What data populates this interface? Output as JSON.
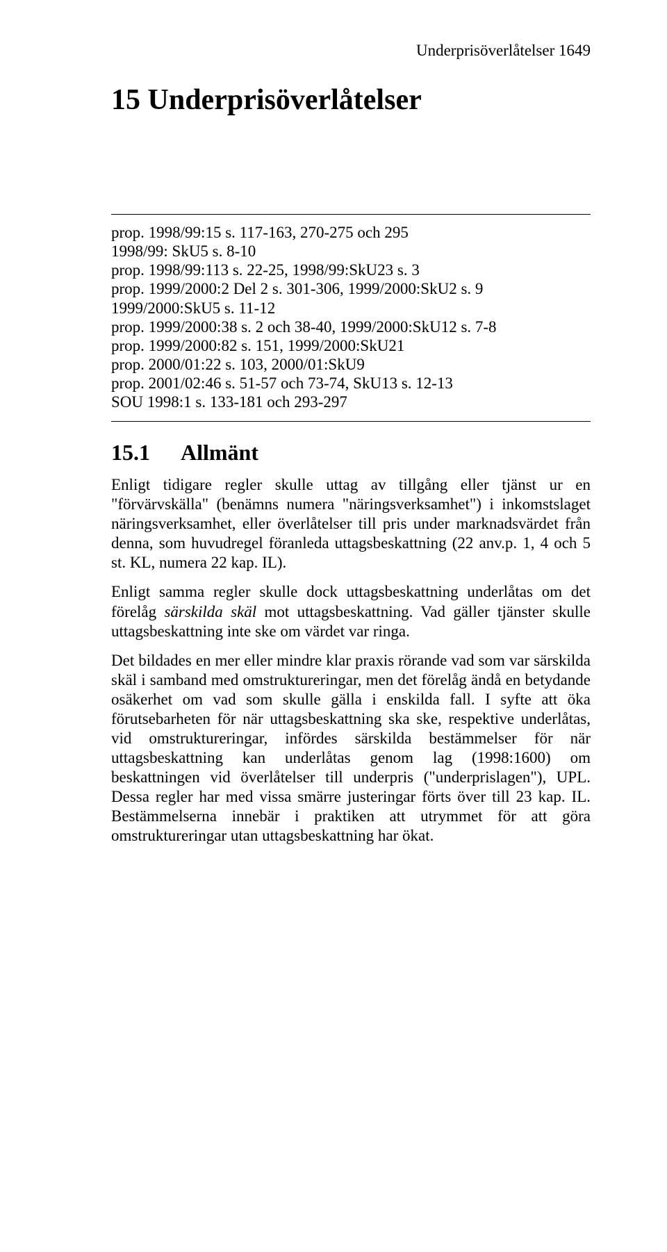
{
  "header": {
    "running": "Underprisöverlåtelser 1649"
  },
  "chapter": {
    "number": "15",
    "title": "Underprisöverlåtelser"
  },
  "references_block": "prop. 1998/99:15 s. 117-163, 270-275 och 295\n1998/99: SkU5 s. 8-10\nprop. 1998/99:113 s. 22-25, 1998/99:SkU23 s. 3\nprop. 1999/2000:2 Del 2 s. 301-306, 1999/2000:SkU2 s. 9\n1999/2000:SkU5 s. 11-12\nprop. 1999/2000:38 s. 2 och 38-40, 1999/2000:SkU12 s. 7-8\nprop. 1999/2000:82 s. 151, 1999/2000:SkU21\nprop. 2000/01:22 s. 103, 2000/01:SkU9\nprop. 2001/02:46 s. 51-57 och 73-74, SkU13 s. 12-13\nSOU 1998:1 s. 133-181 och 293-297",
  "section": {
    "number": "15.1",
    "title": "Allmänt"
  },
  "paragraphs": {
    "p1": "Enligt tidigare regler skulle uttag av tillgång eller tjänst ur en \"förvärvskälla\" (benämns numera \"näringsverksamhet\") i inkomst­slaget näringsverksamhet, eller överlåtelser till pris under marknadsvärdet från denna, som huvudregel föranleda uttags­beskattning (22 anv.p. 1, 4 och 5 st. KL, numera 22 kap. IL).",
    "p2_pre": "Enligt samma regler skulle dock uttagsbeskattning underlåtas om det förelåg ",
    "p2_italic": "särskilda skäl",
    "p2_post": " mot uttagsbeskattning. Vad gäller tjänster skulle uttagsbeskattning inte ske om värdet var ringa.",
    "p3": "Det bildades en mer eller mindre klar praxis rörande vad som var särskilda skäl i samband med omstruktureringar, men det förelåg ändå en betydande osäkerhet om vad som skulle gälla i enskilda fall. I syfte att öka förutsebarheten för när uttagsbeskattning ska ske, respektive underlåtas, vid omstruktureringar, infördes särskilda bestämmelser för när uttagsbeskattning kan underlåtas genom lag (1998:1600) om beskattningen vid överlåtelser till underpris (\"underprislagen\"), UPL. Dessa regler har med vissa smärre justeringar förts över till 23 kap. IL. Bestämmelserna innebär i praktiken att utrymmet för att göra omstruktureringar utan uttagsbeskattning har ökat."
  }
}
